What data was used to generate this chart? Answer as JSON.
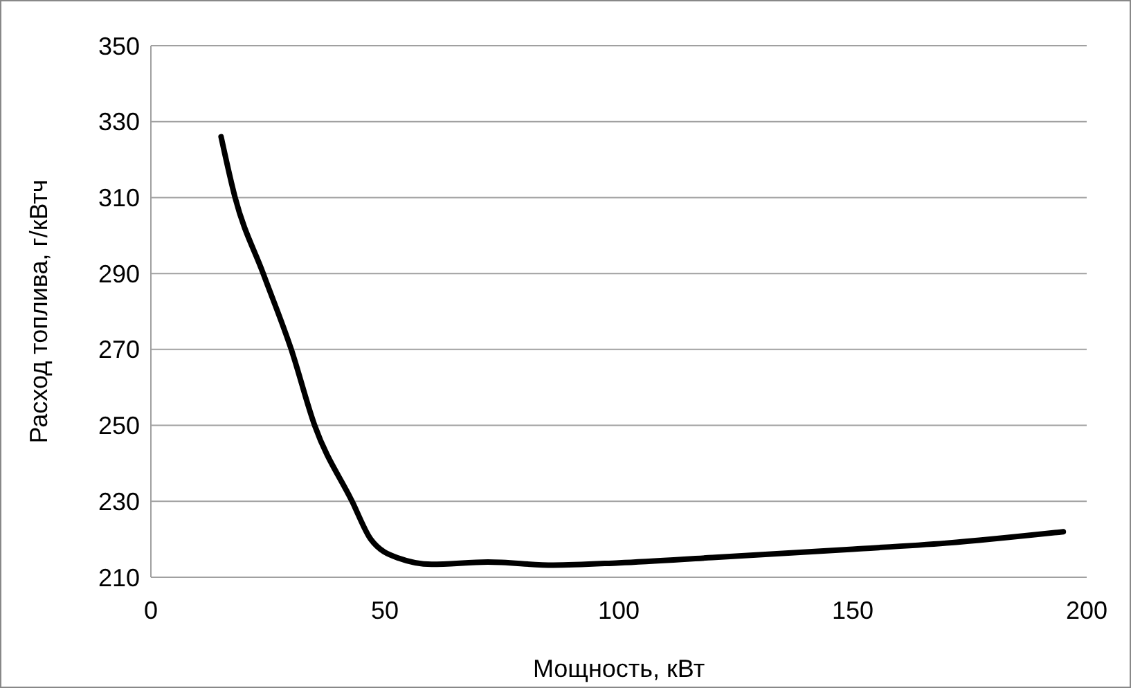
{
  "chart_data": {
    "type": "line",
    "xlabel": "Мощность, кВт",
    "ylabel": "Расход топлива, г/кВтч",
    "x": [
      15,
      18,
      24,
      30,
      35,
      43,
      47,
      53,
      60,
      72,
      86,
      100,
      120,
      150,
      170,
      195
    ],
    "series": [
      {
        "color": "#000000",
        "values": [
          326,
          310,
          290,
          270,
          250,
          230,
          220,
          215,
          213.4,
          214,
          213.2,
          213.8,
          215.2,
          217.4,
          219,
          222
        ]
      }
    ],
    "xlim": [
      0,
      200
    ],
    "xticks": [
      0,
      50,
      100,
      150,
      200
    ],
    "ylim": [
      210,
      350
    ],
    "yticks": [
      210,
      230,
      250,
      270,
      290,
      310,
      330,
      350
    ],
    "grid": "y",
    "marker": "none",
    "line_style": "solid"
  }
}
